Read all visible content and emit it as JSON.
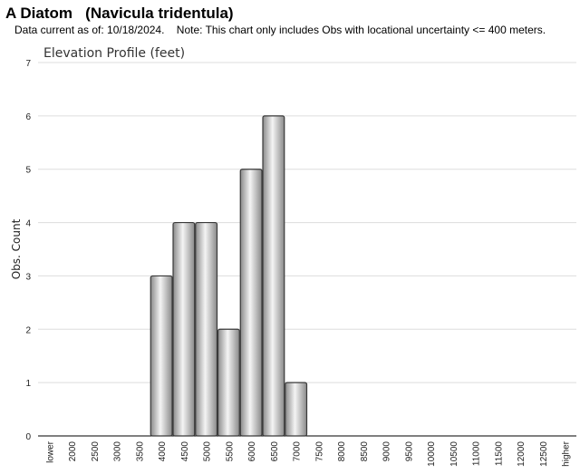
{
  "header": {
    "title": "A Diatom   (Navicula tridentula)",
    "note": "Data current as of: 10/18/2024.    Note: This chart only includes Obs with locational uncertainty <= 400 meters."
  },
  "chart_data": {
    "type": "bar",
    "title": "Elevation Profile (feet)",
    "xlabel": "",
    "ylabel": "Obs. Count",
    "categories": [
      "lower",
      "2000",
      "2500",
      "3000",
      "3500",
      "4000",
      "4500",
      "5000",
      "5500",
      "6000",
      "6500",
      "7000",
      "7500",
      "8000",
      "8500",
      "9000",
      "9500",
      "10000",
      "10500",
      "11000",
      "11500",
      "12000",
      "12500",
      "higher"
    ],
    "values": [
      0,
      0,
      0,
      0,
      0,
      3,
      4,
      4,
      2,
      5,
      6,
      1,
      0,
      0,
      0,
      0,
      0,
      0,
      0,
      0,
      0,
      0,
      0,
      0
    ],
    "ylim": [
      0,
      7
    ],
    "yticks": [
      "0",
      "1",
      "2",
      "3",
      "4",
      "5",
      "6",
      "7"
    ],
    "grid": true,
    "legend": "none",
    "colors": {
      "bar_light": "#f4f4f4",
      "bar_dark": "#8a8a8a",
      "bar_stroke": "#3a3a3a",
      "grid": "#dddddd"
    }
  }
}
